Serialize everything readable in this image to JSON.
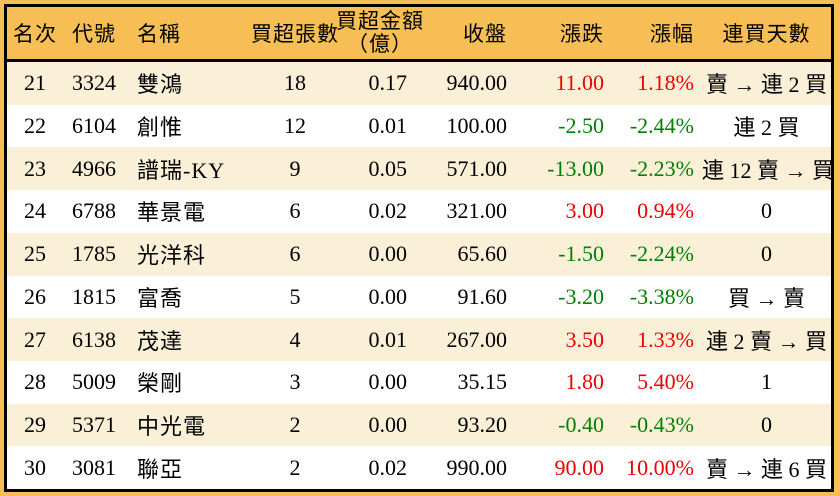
{
  "chart_data": {
    "type": "table",
    "columns": [
      {
        "key": "rank",
        "label": "名次"
      },
      {
        "key": "code",
        "label": "代號"
      },
      {
        "key": "name",
        "label": "名稱"
      },
      {
        "key": "volume",
        "label": "買超張數"
      },
      {
        "key": "amount",
        "label": "買超金額",
        "label_line2": "（億）"
      },
      {
        "key": "close",
        "label": "收盤"
      },
      {
        "key": "change",
        "label": "漲跌"
      },
      {
        "key": "pct",
        "label": "漲幅"
      },
      {
        "key": "streak",
        "label": "連買天數"
      }
    ],
    "rows": [
      {
        "rank": "21",
        "code": "3324",
        "name": "雙鴻",
        "volume": "18",
        "amount": "0.17",
        "close": "940.00",
        "change": "11.00",
        "pct": "1.18%",
        "direction": "up",
        "streak": "賣 → 連 2 買"
      },
      {
        "rank": "22",
        "code": "6104",
        "name": "創惟",
        "volume": "12",
        "amount": "0.01",
        "close": "100.00",
        "change": "-2.50",
        "pct": "-2.44%",
        "direction": "down",
        "streak": "連 2 買"
      },
      {
        "rank": "23",
        "code": "4966",
        "name": "譜瑞-KY",
        "volume": "9",
        "amount": "0.05",
        "close": "571.00",
        "change": "-13.00",
        "pct": "-2.23%",
        "direction": "down",
        "streak": "連 12 賣 → 買"
      },
      {
        "rank": "24",
        "code": "6788",
        "name": "華景電",
        "volume": "6",
        "amount": "0.02",
        "close": "321.00",
        "change": "3.00",
        "pct": "0.94%",
        "direction": "up",
        "streak": "0"
      },
      {
        "rank": "25",
        "code": "1785",
        "name": "光洋科",
        "volume": "6",
        "amount": "0.00",
        "close": "65.60",
        "change": "-1.50",
        "pct": "-2.24%",
        "direction": "down",
        "streak": "0"
      },
      {
        "rank": "26",
        "code": "1815",
        "name": "富喬",
        "volume": "5",
        "amount": "0.00",
        "close": "91.60",
        "change": "-3.20",
        "pct": "-3.38%",
        "direction": "down",
        "streak": "買 → 賣"
      },
      {
        "rank": "27",
        "code": "6138",
        "name": "茂達",
        "volume": "4",
        "amount": "0.01",
        "close": "267.00",
        "change": "3.50",
        "pct": "1.33%",
        "direction": "up",
        "streak": "連 2 賣 → 買"
      },
      {
        "rank": "28",
        "code": "5009",
        "name": "榮剛",
        "volume": "3",
        "amount": "0.00",
        "close": "35.15",
        "change": "1.80",
        "pct": "5.40%",
        "direction": "up",
        "streak": "1"
      },
      {
        "rank": "29",
        "code": "5371",
        "name": "中光電",
        "volume": "2",
        "amount": "0.00",
        "close": "93.20",
        "change": "-0.40",
        "pct": "-0.43%",
        "direction": "down",
        "streak": "0"
      },
      {
        "rank": "30",
        "code": "3081",
        "name": "聯亞",
        "volume": "2",
        "amount": "0.02",
        "close": "990.00",
        "change": "90.00",
        "pct": "10.00%",
        "direction": "up",
        "streak": "賣 → 連 6 買"
      }
    ]
  },
  "colors": {
    "header_bg": "#F6BE55",
    "row_alt_bg": "#FAF0D8",
    "up": "#EE0000",
    "down": "#007F00",
    "frame_border": "#000000"
  }
}
